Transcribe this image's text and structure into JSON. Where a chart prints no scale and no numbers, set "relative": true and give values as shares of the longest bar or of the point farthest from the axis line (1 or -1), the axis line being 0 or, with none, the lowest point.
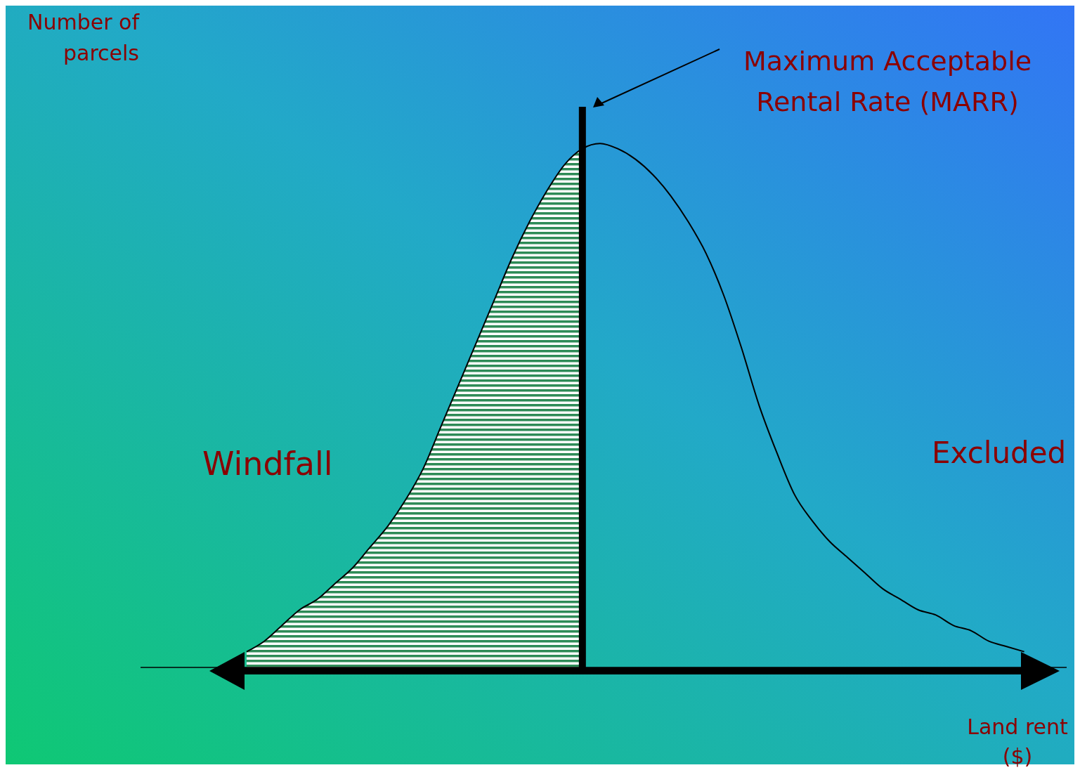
{
  "chart_data": {
    "type": "line",
    "relative": true,
    "xlabel": "Land rent ($)",
    "categories": [
      null,
      null,
      null,
      null,
      null,
      null,
      null,
      null,
      null,
      null,
      null,
      null,
      null,
      null,
      null,
      null,
      null,
      null,
      null,
      null,
      null,
      null,
      null,
      null,
      null,
      null,
      null,
      null,
      null,
      null,
      null,
      null,
      null,
      null,
      null,
      null,
      null,
      null,
      null,
      null,
      null,
      null,
      null,
      null,
      null
    ],
    "series": [
      {
        "type": "area",
        "color": "#2e8b57",
        "values": [
          0.03,
          0.05,
          0.08,
          0.11,
          0.13,
          0.16,
          0.19,
          0.23,
          0.27,
          0.32,
          0.38,
          0.46,
          0.54,
          0.62,
          0.7,
          0.78,
          0.85,
          0.91,
          0.96,
          0.99,
          null,
          null,
          null,
          null,
          null,
          null,
          null,
          null,
          null,
          null,
          null,
          null,
          null,
          null,
          null,
          null,
          null,
          null,
          null,
          null,
          null,
          null,
          null,
          null,
          null
        ]
      },
      {
        "color": "#000000",
        "values": [
          0.03,
          0.05,
          0.08,
          0.11,
          0.13,
          0.16,
          0.19,
          0.23,
          0.27,
          0.32,
          0.38,
          0.46,
          0.54,
          0.62,
          0.7,
          0.78,
          0.85,
          0.91,
          0.96,
          0.99,
          1.0,
          0.99,
          0.97,
          0.94,
          0.9,
          0.85,
          0.79,
          0.71,
          0.61,
          0.5,
          0.41,
          0.33,
          0.28,
          0.24,
          0.21,
          0.18,
          0.15,
          0.13,
          0.11,
          0.1,
          0.08,
          0.07,
          0.05,
          0.04,
          0.03
        ]
      }
    ],
    "annotations": [
      "Maximum Acceptable Rental Rate (MARR)",
      "Windfall",
      "Excluded",
      "Number of parcels"
    ]
  }
}
